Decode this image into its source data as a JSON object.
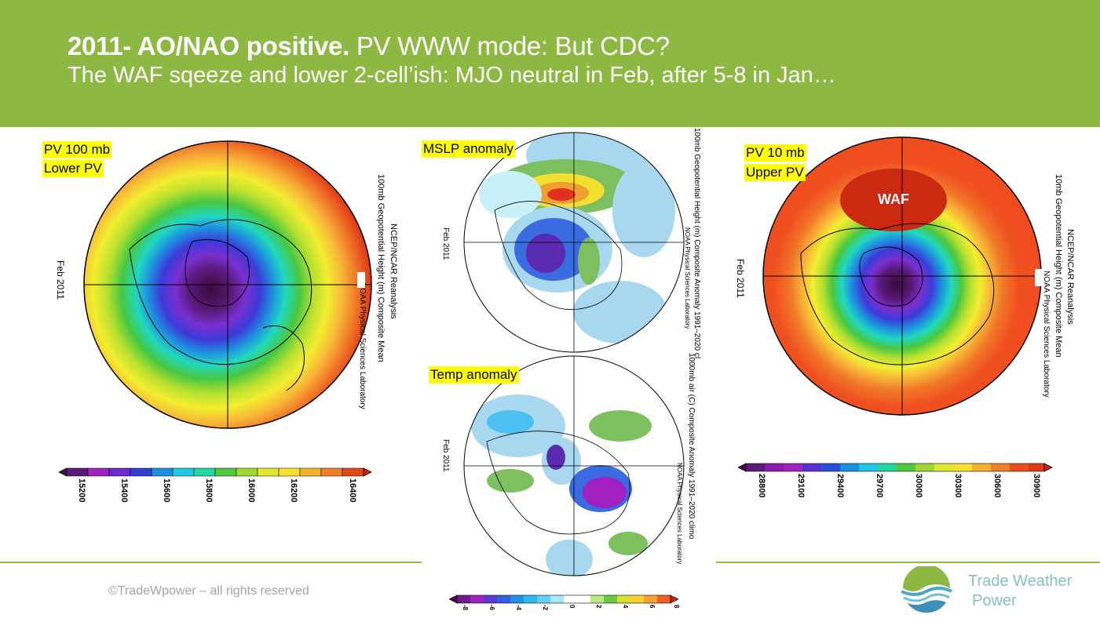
{
  "slide": {
    "title_bold": "2011- AO/NAO positive.",
    "title_rest": " PV WWW mode: But CDC?",
    "subtitle": "The WAF sqeeze and lower 2-cell’ish: MJO neutral in Feb, after 5-8 in Jan…",
    "footer": "©TradeWpower – all rights reserved",
    "brand_line1": "Trade Weather",
    "brand_line2": "Power"
  },
  "maps": {
    "left": {
      "label1": "PV 100 mb",
      "label2": "Lower PV",
      "date": "Feb 2011",
      "caption1": "NCEP/NCAR Reanalysis",
      "caption2": "100mb Geopotential Height (m) Composite Mean",
      "caption3": "NOAA Physical Sciences Laboratory",
      "ticks": [
        "15200",
        "15400",
        "15600",
        "15800",
        "16000",
        "16200",
        "16400"
      ]
    },
    "middle_top": {
      "label": "MSLP anomaly",
      "date": "Feb 2011",
      "caption1": "100mb Geopotential Height (m) Composite Anomaly 1991–2020 cl",
      "caption2": "NOAA Physical Sciences Laboratory"
    },
    "middle_bottom": {
      "label": "Temp anomaly",
      "date": "Feb 2011",
      "caption1": "1000mb air (C) Composite Anomaly 1991–2020 climo",
      "caption2": "NOAA Physical Sciences Laboratory",
      "ticks": [
        "-8",
        "-6",
        "-4",
        "-2",
        "0",
        "2",
        "4",
        "6",
        "8"
      ]
    },
    "right": {
      "label1": "PV 10 mb",
      "label2": "Upper PV",
      "annotation": "WAF",
      "date": "Feb 2011",
      "caption1": "NCEP/NCAR Reanalysis",
      "caption2": "10mb Geopotential Height (m) Composite Mean",
      "caption3": "NOAA Physical Sciences Laboratory",
      "ticks": [
        "28800",
        "29100",
        "29400",
        "29700",
        "30000",
        "30300",
        "30600",
        "30900"
      ]
    }
  },
  "colors": {
    "header_green": "#8db842",
    "footer_text": "#a3a3a3",
    "brand_teal": "#86c3bd",
    "highlight": "#ffff00"
  }
}
